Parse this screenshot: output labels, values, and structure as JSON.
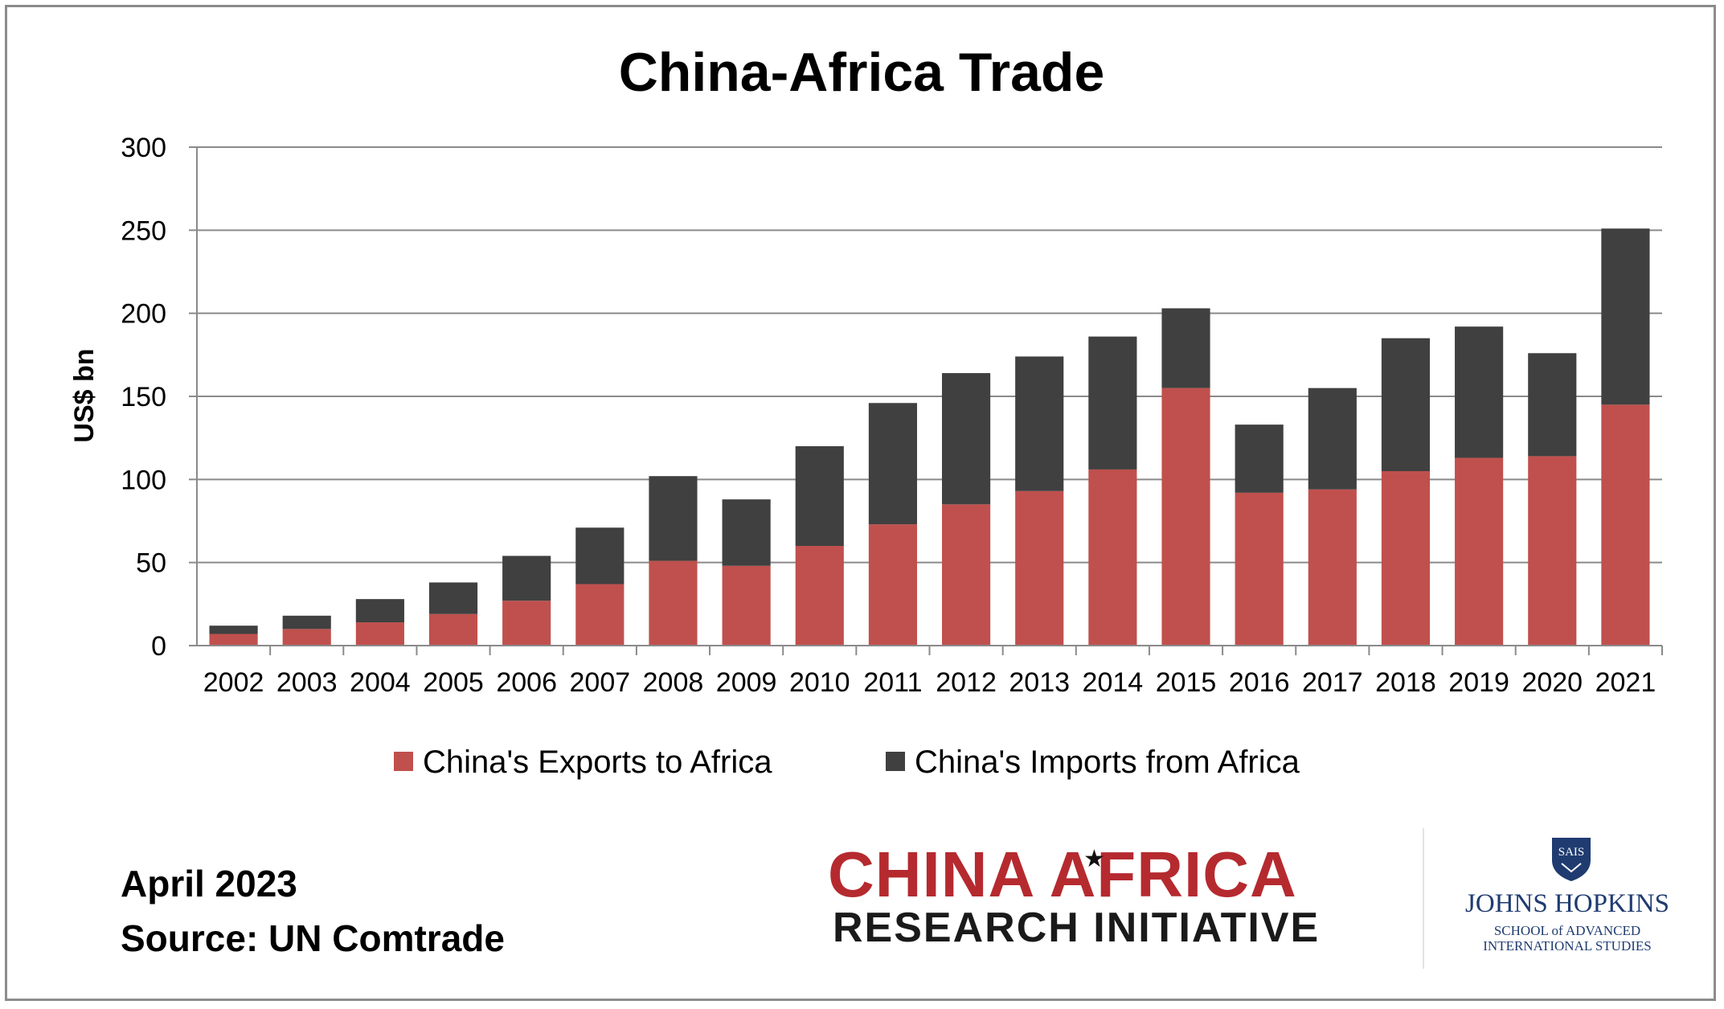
{
  "chart_data": {
    "type": "bar",
    "stacked": true,
    "title": "China-Africa Trade",
    "xlabel": "",
    "ylabel": "US$ bn",
    "ylim": [
      0,
      300
    ],
    "yticks": [
      "0",
      "50",
      "100",
      "150",
      "200",
      "250",
      "300"
    ],
    "grid": true,
    "legend_position": "bottom",
    "categories": [
      "2002",
      "2003",
      "2004",
      "2005",
      "2006",
      "2007",
      "2008",
      "2009",
      "2010",
      "2011",
      "2012",
      "2013",
      "2014",
      "2015",
      "2016",
      "2017",
      "2018",
      "2019",
      "2020",
      "2021"
    ],
    "series": [
      {
        "name": "China's Exports to Africa",
        "color": "#c0504d",
        "values": [
          7,
          10,
          14,
          19,
          27,
          37,
          51,
          48,
          60,
          73,
          85,
          93,
          106,
          155,
          92,
          94,
          105,
          113,
          114,
          145
        ]
      },
      {
        "name": "China's Imports from Africa",
        "color": "#404040",
        "values": [
          5,
          8,
          14,
          19,
          27,
          34,
          51,
          40,
          60,
          73,
          79,
          81,
          80,
          48,
          41,
          61,
          80,
          79,
          62,
          106
        ]
      }
    ]
  },
  "footer": {
    "date": "April 2023",
    "source": "Source: UN Comtrade"
  },
  "logos": {
    "cari_top": "CHINA AFRICA",
    "cari_bottom": "RESEARCH INITIATIVE",
    "cari_color": "#b52a2f",
    "jhu_shield_text": "SAIS",
    "jhu_name": "JOHNS HOPKINS",
    "jhu_school_line1": "SCHOOL of ADVANCED",
    "jhu_school_line2": "INTERNATIONAL STUDIES",
    "jhu_color": "#1f3b70"
  }
}
